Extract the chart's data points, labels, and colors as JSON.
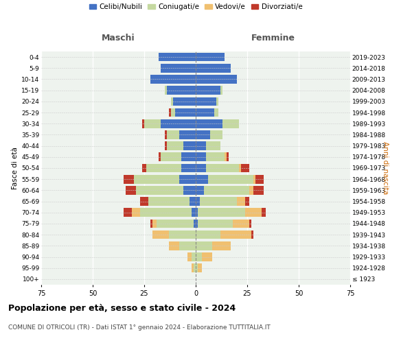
{
  "age_groups": [
    "100+",
    "95-99",
    "90-94",
    "85-89",
    "80-84",
    "75-79",
    "70-74",
    "65-69",
    "60-64",
    "55-59",
    "50-54",
    "45-49",
    "40-44",
    "35-39",
    "30-34",
    "25-29",
    "20-24",
    "15-19",
    "10-14",
    "5-9",
    "0-4"
  ],
  "birth_years": [
    "≤ 1923",
    "1924-1928",
    "1929-1933",
    "1934-1938",
    "1939-1943",
    "1944-1948",
    "1949-1953",
    "1954-1958",
    "1959-1963",
    "1964-1968",
    "1969-1973",
    "1974-1978",
    "1979-1983",
    "1984-1988",
    "1989-1993",
    "1994-1998",
    "1999-2003",
    "2004-2008",
    "2009-2013",
    "2014-2018",
    "2019-2023"
  ],
  "maschi": {
    "celibi": [
      0,
      0,
      0,
      0,
      0,
      1,
      2,
      3,
      6,
      8,
      7,
      7,
      6,
      8,
      17,
      10,
      11,
      14,
      22,
      17,
      18
    ],
    "coniugati": [
      0,
      1,
      2,
      8,
      13,
      18,
      25,
      20,
      23,
      22,
      17,
      10,
      8,
      6,
      8,
      2,
      1,
      1,
      0,
      0,
      0
    ],
    "vedovi": [
      0,
      1,
      2,
      5,
      8,
      2,
      4,
      0,
      0,
      0,
      0,
      0,
      0,
      0,
      0,
      0,
      0,
      0,
      0,
      0,
      0
    ],
    "divorziati": [
      0,
      0,
      0,
      0,
      0,
      1,
      4,
      4,
      5,
      5,
      2,
      1,
      1,
      1,
      1,
      1,
      0,
      0,
      0,
      0,
      0
    ]
  },
  "femmine": {
    "nubili": [
      0,
      0,
      0,
      0,
      0,
      1,
      1,
      2,
      4,
      6,
      5,
      5,
      5,
      7,
      13,
      9,
      10,
      12,
      20,
      17,
      14
    ],
    "coniugate": [
      0,
      1,
      3,
      8,
      12,
      17,
      23,
      18,
      22,
      22,
      16,
      9,
      7,
      6,
      8,
      2,
      1,
      1,
      0,
      0,
      0
    ],
    "vedove": [
      0,
      2,
      5,
      9,
      15,
      8,
      8,
      4,
      2,
      1,
      1,
      1,
      0,
      0,
      0,
      0,
      0,
      0,
      0,
      0,
      0
    ],
    "divorziate": [
      0,
      0,
      0,
      0,
      1,
      1,
      2,
      2,
      5,
      4,
      4,
      1,
      0,
      0,
      0,
      0,
      0,
      0,
      0,
      0,
      0
    ]
  },
  "colors": {
    "celibi": "#4472c4",
    "coniugati": "#c5d9a0",
    "vedovi": "#f0c070",
    "divorziati": "#c0392b"
  },
  "legend_labels": [
    "Celibi/Nubili",
    "Coniugati/e",
    "Vedovi/e",
    "Divorziati/e"
  ],
  "title1": "Popolazione per età, sesso e stato civile - 2024",
  "title2": "COMUNE DI OTRICOLI (TR) - Dati ISTAT 1° gennaio 2024 - Elaborazione TUTTITALIA.IT",
  "xlabel_left": "Maschi",
  "xlabel_right": "Femmine",
  "ylabel_left": "Fasce di età",
  "ylabel_right": "Anni di nascita",
  "xlim": 75,
  "background_color": "#eef3ee"
}
